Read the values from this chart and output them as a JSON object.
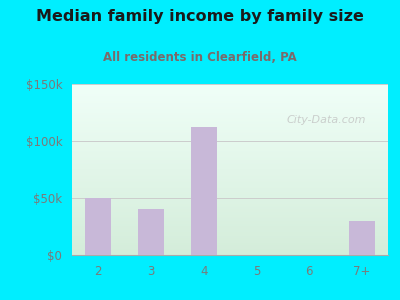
{
  "title": "Median family income by family size",
  "subtitle": "All residents in Clearfield, PA",
  "categories": [
    "2",
    "3",
    "4",
    "5",
    "6",
    "7+"
  ],
  "values": [
    50000,
    40000,
    112000,
    0,
    0,
    30000
  ],
  "bar_color": "#c8b8d8",
  "title_color": "#1a1a1a",
  "subtitle_color": "#7a6a6a",
  "background_outer": "#00eeff",
  "gradient_bottom": "#d4edda",
  "gradient_top": "#f0fff8",
  "ylim": [
    0,
    150000
  ],
  "yticks": [
    0,
    50000,
    100000,
    150000
  ],
  "ytick_labels": [
    "$0",
    "$50k",
    "$100k",
    "$150k"
  ],
  "watermark": "City-Data.com",
  "tick_color": "#7a7a7a"
}
